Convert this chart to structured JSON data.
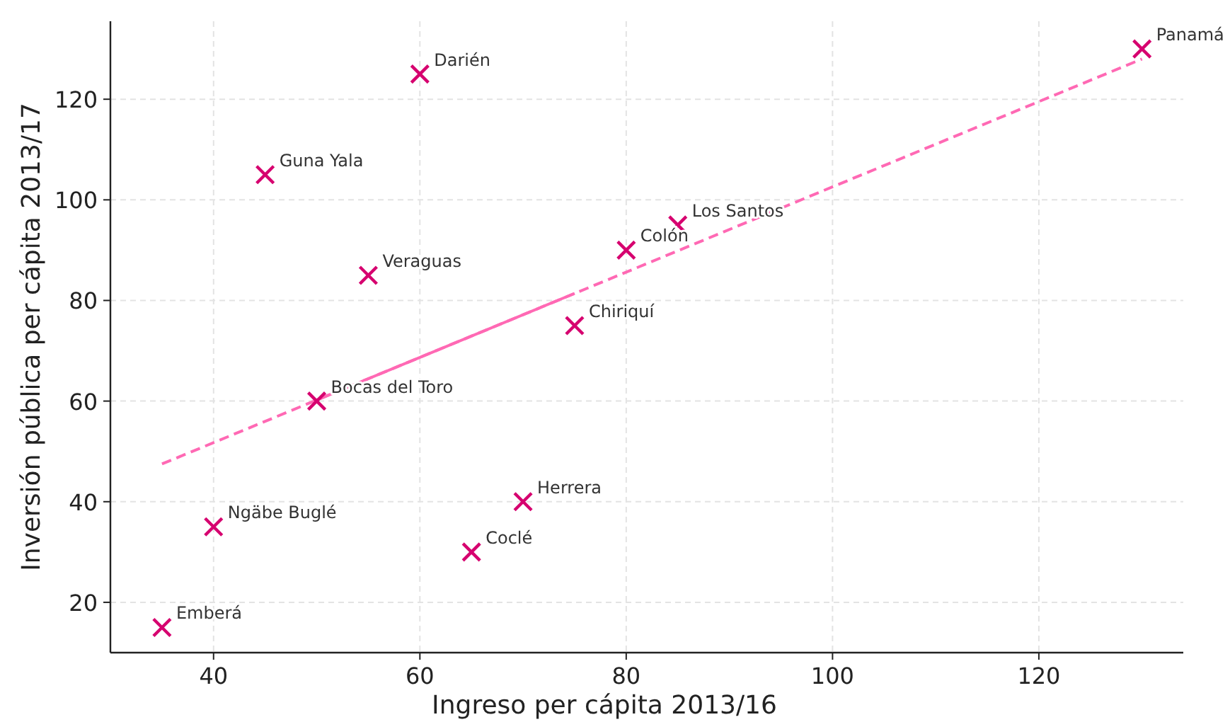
{
  "chart_data": {
    "type": "scatter",
    "xlabel": "Ingreso per cápita 2013/16",
    "ylabel": "Inversión pública per cápita 2013/17",
    "xlim": [
      30,
      134
    ],
    "ylim": [
      10,
      135.5
    ],
    "xticks": [
      40,
      60,
      80,
      100,
      120
    ],
    "yticks": [
      20,
      40,
      60,
      80,
      100,
      120
    ],
    "grid": true,
    "marker": "cross",
    "series": [
      {
        "type": "line",
        "color": "#ff69b4",
        "line_style": "dashed",
        "marker": "none",
        "x": [
          35,
          130
        ],
        "values": [
          47.5,
          128
        ]
      },
      {
        "type": "line",
        "color": "#ff69b4",
        "line_style": "solid",
        "marker": "none",
        "x": [
          50,
          75
        ],
        "values": [
          60.2,
          81.4
        ]
      },
      {
        "color": "#d6006f",
        "x": [
          35,
          40,
          45,
          50,
          55,
          60,
          65,
          70,
          75,
          80,
          85,
          130
        ],
        "values": [
          15,
          35,
          105,
          60,
          85,
          125,
          30,
          40,
          75,
          90,
          95,
          130
        ]
      }
    ],
    "annotations": [
      {
        "text": "Emberá",
        "x": 35,
        "y": 15
      },
      {
        "text": "Ngäbe Buglé",
        "x": 40,
        "y": 35
      },
      {
        "text": "Guna Yala",
        "x": 45,
        "y": 105
      },
      {
        "text": "Bocas del Toro",
        "x": 50,
        "y": 60
      },
      {
        "text": "Veraguas",
        "x": 55,
        "y": 85
      },
      {
        "text": "Darién",
        "x": 60,
        "y": 125
      },
      {
        "text": "Coclé",
        "x": 65,
        "y": 30
      },
      {
        "text": "Herrera",
        "x": 70,
        "y": 40
      },
      {
        "text": "Chiriquí",
        "x": 75,
        "y": 75
      },
      {
        "text": "Colón",
        "x": 80,
        "y": 90
      },
      {
        "text": "Los Santos",
        "x": 85,
        "y": 95
      },
      {
        "text": "Panamá",
        "x": 130,
        "y": 130
      }
    ]
  }
}
